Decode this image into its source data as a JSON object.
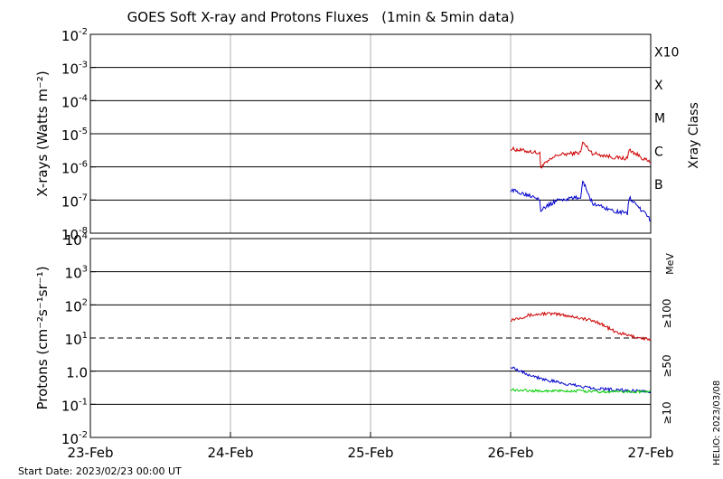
{
  "title": "GOES Soft X-ray and Protons Fluxes   (1min & 5min data)",
  "start_date": "Start Date: 2023/02/23 00:00 UT",
  "credit": "HELIO: 2023/03/08",
  "x_ticks": [
    "23-Feb",
    "24-Feb",
    "25-Feb",
    "26-Feb",
    "27-Feb"
  ],
  "xray_class_label": "Xray Class",
  "xray_classes": [
    "X10",
    "X",
    "M",
    "C",
    "B"
  ],
  "mev_label": "MeV",
  "proton_channels": [
    {
      "label": "≥100",
      "color": "#00cc00"
    },
    {
      "label": "≥50",
      "color": "#0000cc"
    },
    {
      "label": "≥10",
      "color": "#cc0000"
    }
  ],
  "chart_data": [
    {
      "type": "line",
      "title": "X-rays",
      "ylabel": "X-rays (Watts m⁻²)",
      "yscale": "log",
      "ylim": [
        1e-08,
        0.01
      ],
      "y_ticks": [
        {
          "base": "10",
          "exp": "-2"
        },
        {
          "base": "10",
          "exp": "-3"
        },
        {
          "base": "10",
          "exp": "-4"
        },
        {
          "base": "10",
          "exp": "-5"
        },
        {
          "base": "10",
          "exp": "-6"
        },
        {
          "base": "10",
          "exp": "-7"
        },
        {
          "base": "10",
          "exp": "-8"
        }
      ],
      "x": [
        "2023-02-26 00:00",
        "2023-02-26 04:00",
        "2023-02-26 05:00",
        "2023-02-26 05:10",
        "2023-02-26 08:00",
        "2023-02-26 12:00",
        "2023-02-26 12:20",
        "2023-02-26 14:00",
        "2023-02-26 18:00",
        "2023-02-26 20:00",
        "2023-02-26 20:20",
        "2023-02-27 00:00"
      ],
      "series": [
        {
          "color": "#cc0000",
          "values": [
            3.5e-06,
            2.8e-06,
            2.5e-06,
            1e-06,
            2.3e-06,
            2.7e-06,
            5.5e-06,
            2.6e-06,
            1.9e-06,
            1.8e-06,
            3.3e-06,
            1.3e-06
          ]
        },
        {
          "color": "#0000cc",
          "values": [
            2e-07,
            1.3e-07,
            1.1e-07,
            5e-08,
            1e-07,
            1.2e-07,
            4e-07,
            8e-08,
            4.5e-08,
            4e-08,
            1.2e-07,
            2.5e-08
          ]
        }
      ]
    },
    {
      "type": "line",
      "title": "Protons",
      "ylabel": "Protons (cm⁻²s⁻¹sr⁻¹)",
      "yscale": "log",
      "ylim": [
        0.01,
        10000
      ],
      "threshold": 10,
      "y_ticks": [
        {
          "base": "10",
          "exp": "4"
        },
        {
          "base": "10",
          "exp": "3"
        },
        {
          "base": "10",
          "exp": "2"
        },
        {
          "base": "10",
          "exp": "1"
        },
        {
          "base": "10",
          "exp": "0",
          "mant": "1.0"
        },
        {
          "base": "10",
          "exp": "-1"
        },
        {
          "base": "10",
          "exp": "-2"
        }
      ],
      "x": [
        "2023-02-26 00:00",
        "2023-02-26 03:00",
        "2023-02-26 06:00",
        "2023-02-26 09:00",
        "2023-02-26 12:00",
        "2023-02-26 15:00",
        "2023-02-26 18:00",
        "2023-02-26 21:00",
        "2023-02-27 00:00"
      ],
      "series": [
        {
          "color": "#cc0000",
          "values": [
            35,
            48,
            55,
            50,
            40,
            30,
            15,
            11,
            9
          ]
        },
        {
          "color": "#0000cc",
          "values": [
            1.4,
            0.8,
            0.55,
            0.42,
            0.35,
            0.3,
            0.27,
            0.25,
            0.25
          ]
        },
        {
          "color": "#00cc00",
          "values": [
            0.28,
            0.26,
            0.25,
            0.25,
            0.25,
            0.24,
            0.24,
            0.24,
            0.24
          ]
        }
      ]
    }
  ]
}
